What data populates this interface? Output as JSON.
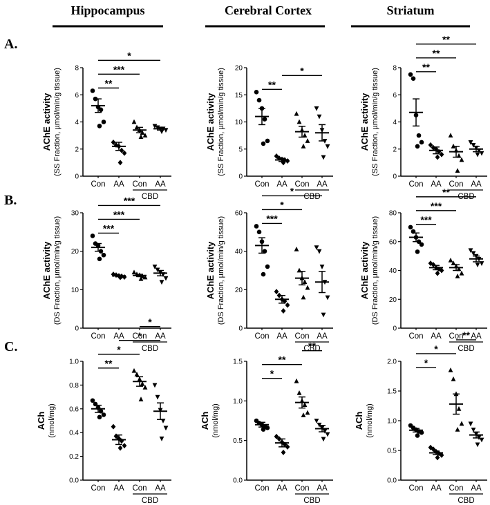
{
  "headers": [
    "Hippocampus",
    "Cerebral Cortex",
    "Striatum"
  ],
  "row_labels": [
    "A.",
    "B.",
    "C."
  ],
  "colors": {
    "ink": "#000000"
  },
  "chart_data": [
    {
      "type": "scatter",
      "panel": "A-Hippocampus",
      "categories": [
        "Con",
        "AA",
        "Con",
        "AA"
      ],
      "group_label": "CBD",
      "ylabel": "AChE activity",
      "ylabel_sub": "(SS Fraction, µmol/min/g tissue)",
      "ylim": [
        0,
        8
      ],
      "yticks": [
        "0",
        "2",
        "4",
        "6",
        "8"
      ],
      "markers": [
        "circle",
        "diamond",
        "triangle",
        "inverted-triangle"
      ],
      "points": [
        [
          6.3,
          5.7,
          5.1,
          4.9,
          4.0,
          3.7
        ],
        [
          2.5,
          2.3,
          2.2,
          1.9,
          1.7,
          1.0
        ],
        [
          4.0,
          3.6,
          3.4,
          3.2,
          3.0,
          2.9
        ],
        [
          3.7,
          3.6,
          3.5,
          3.5,
          3.4,
          3.3
        ]
      ],
      "means": [
        5.2,
        2.2,
        3.4,
        3.5
      ],
      "sems": [
        0.5,
        0.3,
        0.2,
        0.1
      ],
      "significance": [
        {
          "from": 0,
          "to": 1,
          "label": "**"
        },
        {
          "from": 0,
          "to": 2,
          "label": "***"
        },
        {
          "from": 0,
          "to": 3,
          "label": "*"
        }
      ]
    },
    {
      "type": "scatter",
      "panel": "A-Cerebral Cortex",
      "categories": [
        "Con",
        "AA",
        "Con",
        "AA"
      ],
      "group_label": "CBD",
      "ylabel": "AChE activity",
      "ylabel_sub": "(SS Fraction, µmol/min/g tissue)",
      "ylim": [
        0,
        20
      ],
      "yticks": [
        "0",
        "5",
        "10",
        "15",
        "20"
      ],
      "markers": [
        "circle",
        "diamond",
        "triangle",
        "inverted-triangle"
      ],
      "points": [
        [
          15.5,
          14.0,
          12.5,
          10.5,
          6.5,
          6.0
        ],
        [
          3.7,
          3.3,
          3.1,
          3.0,
          2.8,
          2.5
        ],
        [
          11.5,
          10.0,
          8.5,
          7.5,
          6.5,
          5.5
        ],
        [
          12.5,
          11.0,
          8.5,
          6.5,
          5.5,
          3.5
        ]
      ],
      "means": [
        11.0,
        3.0,
        8.2,
        8.0
      ],
      "sems": [
        1.5,
        0.3,
        1.0,
        1.5
      ],
      "significance": [
        {
          "from": 0,
          "to": 1,
          "label": "**"
        },
        {
          "from": 1,
          "to": 3,
          "label": "*"
        }
      ]
    },
    {
      "type": "scatter",
      "panel": "A-Striatum",
      "categories": [
        "Con",
        "AA",
        "Con",
        "AA"
      ],
      "group_label": "CBD",
      "ylabel": "AChE activity",
      "ylabel_sub": "(SS Fraction, µmol/min/g tissue)",
      "ylim": [
        0,
        8
      ],
      "yticks": [
        "0",
        "2",
        "4",
        "6",
        "8"
      ],
      "markers": [
        "circle",
        "diamond",
        "triangle",
        "inverted-triangle"
      ],
      "points": [
        [
          7.5,
          7.2,
          4.5,
          3.0,
          2.5,
          2.2
        ],
        [
          2.3,
          2.1,
          2.0,
          1.8,
          1.6,
          1.4
        ],
        [
          3.0,
          2.2,
          1.9,
          1.5,
          1.2,
          0.4
        ],
        [
          2.5,
          2.3,
          2.1,
          1.9,
          1.7,
          1.6
        ]
      ],
      "means": [
        4.7,
        1.9,
        1.8,
        2.0
      ],
      "sems": [
        1.0,
        0.25,
        0.4,
        0.2
      ],
      "significance": [
        {
          "from": 0,
          "to": 1,
          "label": "**"
        },
        {
          "from": 0,
          "to": 2,
          "label": "**"
        },
        {
          "from": 0,
          "to": 3,
          "label": "**"
        }
      ]
    },
    {
      "type": "scatter",
      "panel": "B-Hippocampus",
      "categories": [
        "Con",
        "AA",
        "Con",
        "AA"
      ],
      "group_label": "CBD",
      "ylabel": "AChE activity",
      "ylabel_sub": "(DS Fraction, µmol/min/g tissue)",
      "ylim": [
        0,
        30
      ],
      "yticks": [
        "0",
        "10",
        "20",
        "30"
      ],
      "markers": [
        "circle",
        "diamond",
        "triangle",
        "inverted-triangle"
      ],
      "points": [
        [
          24.0,
          22.0,
          21.5,
          20.0,
          19.0,
          18.0
        ],
        [
          14.0,
          13.8,
          13.6,
          13.5,
          13.3,
          13.2
        ],
        [
          14.5,
          14.0,
          13.8,
          13.5,
          13.2,
          12.8
        ],
        [
          16.0,
          15.2,
          14.5,
          14.0,
          13.0,
          12.0
        ]
      ],
      "means": [
        21.0,
        13.6,
        13.7,
        14.3
      ],
      "sems": [
        1.0,
        0.2,
        0.3,
        0.7
      ],
      "significance": [
        {
          "from": 0,
          "to": 1,
          "label": "***"
        },
        {
          "from": 0,
          "to": 2,
          "label": "***"
        },
        {
          "from": 0,
          "to": 3,
          "label": "***"
        }
      ]
    },
    {
      "type": "scatter",
      "panel": "B-Cerebral Cortex",
      "categories": [
        "Con",
        "AA",
        "Con",
        "AA"
      ],
      "group_label": "CBD",
      "ylabel": "AChE activity",
      "ylabel_sub": "(DS Fraction, µmol/min/g tissue)",
      "ylim": [
        0,
        60
      ],
      "yticks": [
        "0",
        "20",
        "40",
        "60"
      ],
      "markers": [
        "circle",
        "diamond",
        "triangle",
        "inverted-triangle"
      ],
      "points": [
        [
          53,
          50,
          45,
          40,
          32,
          28
        ],
        [
          19,
          17,
          15,
          14,
          12,
          9
        ],
        [
          41,
          30,
          26,
          24,
          21,
          16
        ],
        [
          42,
          40,
          32,
          24,
          16,
          7
        ]
      ],
      "means": [
        43.0,
        15.0,
        26.0,
        24.0
      ],
      "sems": [
        4.0,
        2.0,
        3.5,
        5.5
      ],
      "significance": [
        {
          "from": 0,
          "to": 1,
          "label": "***"
        },
        {
          "from": 0,
          "to": 2,
          "label": "*"
        },
        {
          "from": 0,
          "to": 3,
          "label": "*"
        }
      ]
    },
    {
      "type": "scatter",
      "panel": "B-Striatum",
      "categories": [
        "Con",
        "AA",
        "Con",
        "AA"
      ],
      "group_label": "CBD",
      "ylabel": "AChE activity",
      "ylabel_sub": "(DS Fraction, µmol/min/g tissue)",
      "ylim": [
        0,
        80
      ],
      "yticks": [
        "0",
        "20",
        "40",
        "60",
        "80"
      ],
      "markers": [
        "circle",
        "diamond",
        "triangle",
        "inverted-triangle"
      ],
      "points": [
        [
          70,
          67,
          63,
          60,
          58,
          53
        ],
        [
          45,
          44,
          42,
          41,
          40,
          38
        ],
        [
          47,
          45,
          43,
          41,
          38,
          36
        ],
        [
          54,
          52,
          50,
          48,
          45,
          44
        ]
      ],
      "means": [
        63.0,
        42.0,
        42.0,
        48.0
      ],
      "sems": [
        3.0,
        1.5,
        2.0,
        2.0
      ],
      "significance": [
        {
          "from": 0,
          "to": 1,
          "label": "***"
        },
        {
          "from": 0,
          "to": 2,
          "label": "***"
        },
        {
          "from": 0,
          "to": 3,
          "label": "**"
        }
      ]
    },
    {
      "type": "scatter",
      "panel": "C-Hippocampus",
      "categories": [
        "Con",
        "AA",
        "Con",
        "AA"
      ],
      "group_label": "CBD",
      "ylabel": "ACh",
      "ylabel_sub": "(nmol/mg)",
      "ylim": [
        0,
        1.0
      ],
      "yticks": [
        "0.0",
        "0.2",
        "0.4",
        "0.6",
        "0.8",
        "1.0"
      ],
      "markers": [
        "circle",
        "diamond",
        "triangle",
        "inverted-triangle"
      ],
      "points": [
        [
          0.67,
          0.64,
          0.61,
          0.58,
          0.55,
          0.53
        ],
        [
          0.45,
          0.37,
          0.35,
          0.33,
          0.29,
          0.27
        ],
        [
          0.92,
          0.89,
          0.85,
          0.81,
          0.78,
          0.68
        ],
        [
          0.8,
          0.7,
          0.59,
          0.5,
          0.44,
          0.35
        ]
      ],
      "means": [
        0.6,
        0.34,
        0.83,
        0.58
      ],
      "sems": [
        0.03,
        0.04,
        0.04,
        0.07
      ],
      "significance": [
        {
          "from": 0,
          "to": 1,
          "label": "**"
        },
        {
          "from": 0,
          "to": 2,
          "label": "*"
        },
        {
          "from": 1,
          "to": 3,
          "label": "*"
        },
        {
          "from": 2,
          "to": 3,
          "label": "*"
        }
      ]
    },
    {
      "type": "scatter",
      "panel": "C-Cerebral Cortex",
      "categories": [
        "Con",
        "AA",
        "Con",
        "AA"
      ],
      "group_label": "CBD",
      "ylabel": "ACh",
      "ylabel_sub": "(nmol/mg)",
      "ylim": [
        0,
        1.5
      ],
      "yticks": [
        "0.0",
        "0.5",
        "1.0",
        "1.5"
      ],
      "markers": [
        "circle",
        "diamond",
        "triangle",
        "inverted-triangle"
      ],
      "points": [
        [
          0.75,
          0.72,
          0.7,
          0.68,
          0.66,
          0.64
        ],
        [
          0.55,
          0.52,
          0.48,
          0.45,
          0.42,
          0.35
        ],
        [
          1.25,
          1.1,
          1.0,
          0.95,
          0.85,
          0.82
        ],
        [
          0.75,
          0.7,
          0.66,
          0.62,
          0.58,
          0.52
        ]
      ],
      "means": [
        0.7,
        0.47,
        0.98,
        0.65
      ],
      "sems": [
        0.03,
        0.05,
        0.07,
        0.04
      ],
      "significance": [
        {
          "from": 0,
          "to": 1,
          "label": "*"
        },
        {
          "from": 0,
          "to": 2,
          "label": "**"
        },
        {
          "from": 2,
          "to": 3,
          "label": "**"
        }
      ]
    },
    {
      "type": "scatter",
      "panel": "C-Striatum",
      "categories": [
        "Con",
        "AA",
        "Con",
        "AA"
      ],
      "group_label": "CBD",
      "ylabel": "ACh",
      "ylabel_sub": "(nmol/mg)",
      "ylim": [
        0,
        2.0
      ],
      "yticks": [
        "0.0",
        "0.5",
        "1.0",
        "1.5",
        "2.0"
      ],
      "markers": [
        "circle",
        "diamond",
        "triangle",
        "inverted-triangle"
      ],
      "points": [
        [
          0.92,
          0.88,
          0.85,
          0.82,
          0.8,
          0.75
        ],
        [
          0.55,
          0.52,
          0.48,
          0.45,
          0.42,
          0.38
        ],
        [
          1.85,
          1.7,
          1.45,
          1.2,
          0.95,
          0.85
        ],
        [
          0.95,
          0.85,
          0.78,
          0.72,
          0.68,
          0.6
        ]
      ],
      "means": [
        0.84,
        0.46,
        1.28,
        0.76
      ],
      "sems": [
        0.03,
        0.03,
        0.17,
        0.05
      ],
      "significance": [
        {
          "from": 0,
          "to": 1,
          "label": "*"
        },
        {
          "from": 0,
          "to": 2,
          "label": "*"
        },
        {
          "from": 2,
          "to": 3,
          "label": "**"
        }
      ]
    }
  ]
}
